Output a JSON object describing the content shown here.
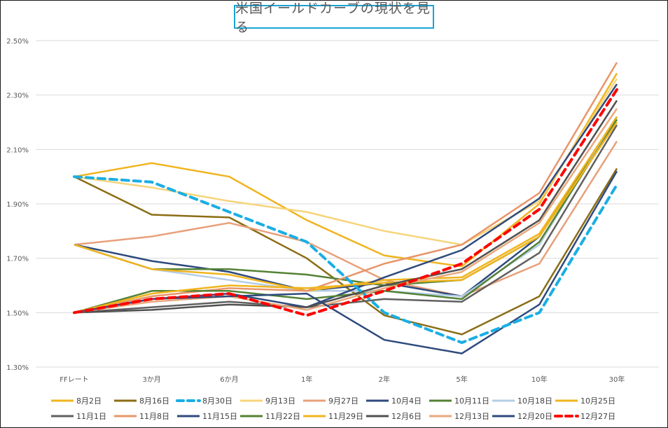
{
  "chart_data": {
    "type": "line",
    "title": "米国イールドカーブの現状を見る",
    "xlabel": "",
    "ylabel": "",
    "categories": [
      "FFレート",
      "3か月",
      "6か月",
      "1年",
      "2年",
      "5年",
      "10年",
      "30年"
    ],
    "ylim": [
      1.3,
      2.5
    ],
    "yticks": [
      1.3,
      1.5,
      1.7,
      1.9,
      2.1,
      2.3,
      2.5
    ],
    "ytick_labels": [
      "1.30%",
      "1.50%",
      "1.70%",
      "1.90%",
      "2.10%",
      "2.30%",
      "2.50%"
    ],
    "grid": true,
    "legend_position": "bottom",
    "series": [
      {
        "name": "8月2日",
        "color": "#f0b41e",
        "dash": false,
        "values": [
          2.0,
          2.05,
          2.0,
          1.84,
          1.71,
          1.67,
          1.9,
          2.38
        ]
      },
      {
        "name": "8月16日",
        "color": "#8b6d14",
        "dash": false,
        "values": [
          2.0,
          1.86,
          1.85,
          1.7,
          1.49,
          1.42,
          1.56,
          2.03
        ]
      },
      {
        "name": "8月30日",
        "color": "#1aaee5",
        "dash": true,
        "values": [
          2.0,
          1.98,
          1.87,
          1.76,
          1.5,
          1.39,
          1.5,
          1.97
        ]
      },
      {
        "name": "9月13日",
        "color": "#f7d47a",
        "dash": false,
        "values": [
          2.0,
          1.96,
          1.91,
          1.87,
          1.8,
          1.75,
          1.91,
          2.36
        ]
      },
      {
        "name": "9月27日",
        "color": "#e8a07a",
        "dash": false,
        "values": [
          1.75,
          1.78,
          1.83,
          1.76,
          1.62,
          1.56,
          1.68,
          2.13
        ]
      },
      {
        "name": "10月4日",
        "color": "#2e4a7d",
        "dash": false,
        "values": [
          1.75,
          1.69,
          1.65,
          1.58,
          1.61,
          1.56,
          1.78,
          2.22
        ]
      },
      {
        "name": "10月11日",
        "color": "#548235",
        "dash": false,
        "values": [
          1.75,
          1.66,
          1.66,
          1.64,
          1.6,
          1.62,
          1.78,
          2.22
        ]
      },
      {
        "name": "10月18日",
        "color": "#b4cde6",
        "dash": false,
        "values": [
          1.75,
          1.66,
          1.62,
          1.58,
          1.58,
          1.56,
          1.75,
          2.22
        ]
      },
      {
        "name": "10月25日",
        "color": "#f0b41e",
        "dash": false,
        "values": [
          1.75,
          1.66,
          1.64,
          1.58,
          1.62,
          1.63,
          1.79,
          2.22
        ]
      },
      {
        "name": "11月1日",
        "color": "#606060",
        "dash": false,
        "values": [
          1.5,
          1.52,
          1.54,
          1.52,
          1.55,
          1.54,
          1.72,
          2.19
        ]
      },
      {
        "name": "11月8日",
        "color": "#e8956a",
        "dash": false,
        "values": [
          1.5,
          1.56,
          1.59,
          1.58,
          1.68,
          1.75,
          1.94,
          2.42
        ]
      },
      {
        "name": "11月15日",
        "color": "#2e4a7d",
        "dash": false,
        "values": [
          1.5,
          1.55,
          1.57,
          1.52,
          1.63,
          1.73,
          1.92,
          2.34
        ]
      },
      {
        "name": "11月22日",
        "color": "#548235",
        "dash": false,
        "values": [
          1.5,
          1.58,
          1.58,
          1.55,
          1.58,
          1.55,
          1.76,
          2.21
        ]
      },
      {
        "name": "11月29日",
        "color": "#f0b41e",
        "dash": false,
        "values": [
          1.5,
          1.57,
          1.6,
          1.59,
          1.61,
          1.62,
          1.78,
          2.2
        ]
      },
      {
        "name": "12月6日",
        "color": "#505050",
        "dash": false,
        "values": [
          1.5,
          1.51,
          1.53,
          1.52,
          1.6,
          1.66,
          1.84,
          2.28
        ]
      },
      {
        "name": "12月13日",
        "color": "#e8a87c",
        "dash": false,
        "values": [
          1.5,
          1.54,
          1.56,
          1.51,
          1.59,
          1.65,
          1.83,
          2.25
        ]
      },
      {
        "name": "12月20日",
        "color": "#2e4a7d",
        "dash": false,
        "values": [
          1.5,
          1.55,
          1.56,
          1.57,
          1.4,
          1.35,
          1.53,
          2.02
        ]
      },
      {
        "name": "12月27日",
        "color": "#ff0000",
        "dash": true,
        "values": [
          1.5,
          1.55,
          1.57,
          1.49,
          1.58,
          1.68,
          1.88,
          2.32
        ]
      }
    ]
  }
}
